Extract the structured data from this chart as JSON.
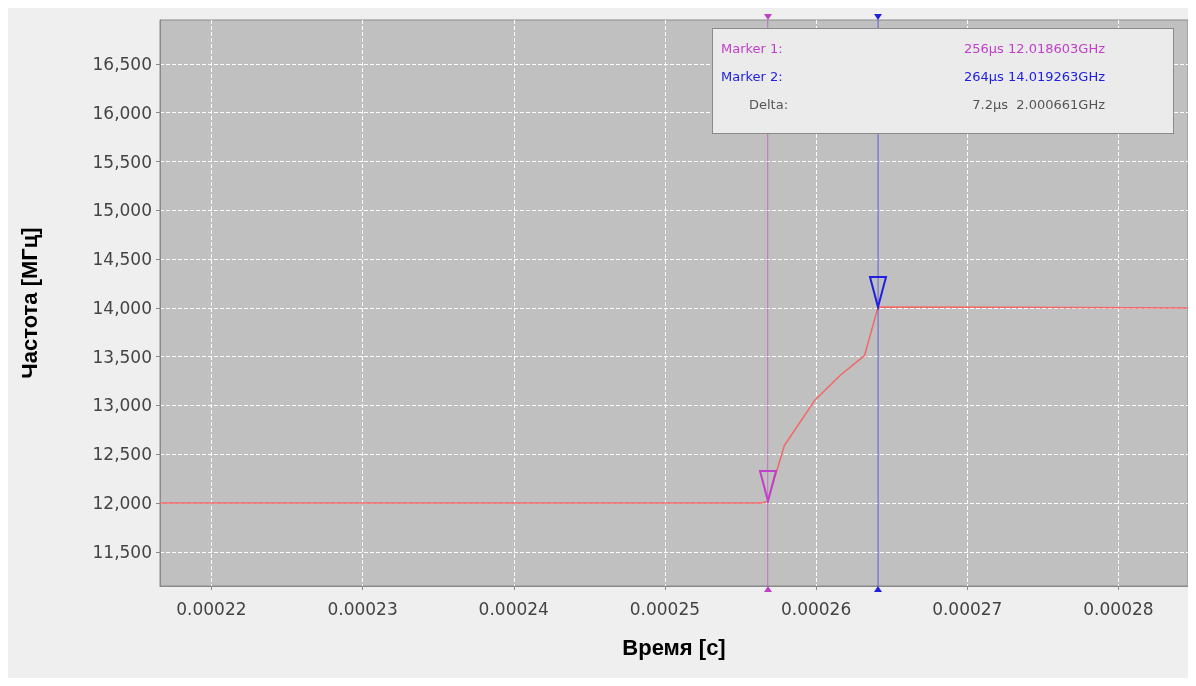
{
  "chart_data": {
    "type": "line",
    "xlabel": "Время [с]",
    "ylabel": "Частота [МГц]",
    "xlim": [
      0.0002166,
      0.0002846
    ],
    "xticks": [
      0.00022,
      0.00023,
      0.00024,
      0.00025,
      0.00026,
      0.00027,
      0.00028
    ],
    "ylim": [
      11150,
      16950
    ],
    "yticks": [
      {
        "value": 11500,
        "label": "11,500"
      },
      {
        "value": 12000,
        "label": "12,000"
      },
      {
        "value": 12500,
        "label": "12,500"
      },
      {
        "value": 13000,
        "label": "13,000"
      },
      {
        "value": 13500,
        "label": "13,500"
      },
      {
        "value": 14000,
        "label": "14,000"
      },
      {
        "value": 14500,
        "label": "14,500"
      },
      {
        "value": 15000,
        "label": "15,000"
      },
      {
        "value": 15500,
        "label": "15,500"
      },
      {
        "value": 16000,
        "label": "16,000"
      },
      {
        "value": 16500,
        "label": "16,500"
      }
    ],
    "grid": true,
    "marker": "none",
    "line_style": "solid",
    "series": [
      {
        "color": "#f06868",
        "x": [
          0.0002166,
          0.0002564,
          0.0002568,
          0.0002579,
          0.0002599,
          0.0002616,
          0.0002632,
          0.0002641,
          0.0002846
        ],
        "values": [
          12000,
          12000,
          12020,
          12590,
          13050,
          13310,
          13510,
          14010,
          14000
        ]
      }
    ],
    "ref_lines": [
      {
        "axis": "x",
        "value": 0.0002568,
        "color": "#c040c8"
      },
      {
        "axis": "x",
        "value": 0.0002641,
        "color": "#2020e0"
      }
    ],
    "annotations": [
      "Marker 1:",
      "256µs 12.018603GHz",
      "Marker 2:",
      "264µs 14.019263GHz",
      "Delta:",
      "7.2µs  2.000661GHz"
    ]
  }
}
